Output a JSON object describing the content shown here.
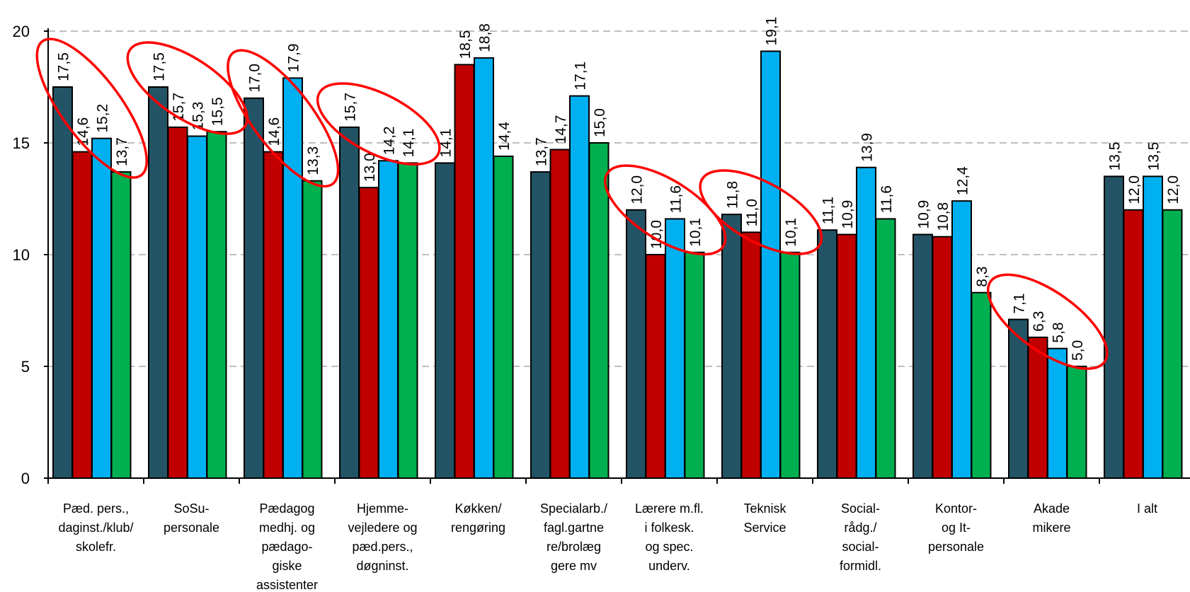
{
  "chart_data": {
    "type": "bar",
    "ylim": [
      0,
      20
    ],
    "yticks": [
      0,
      5,
      10,
      15,
      20
    ],
    "grid": true,
    "title": "",
    "xlabel": "",
    "ylabel": "",
    "categories": [
      [
        "Pæd. pers.,",
        "daginst./klub/",
        "skolefr."
      ],
      [
        "SoSu-",
        "personale"
      ],
      [
        "Pædagog",
        "medhj. og",
        "pædago-",
        "giske",
        "assistenter"
      ],
      [
        "Hjemme-",
        "vejledere og",
        "pæd.pers.,",
        "døgninst."
      ],
      [
        "Køkken/",
        "rengøring"
      ],
      [
        "Specialarb./",
        "fagl.gartne",
        "re/brolæg",
        "gere mv"
      ],
      [
        "Lærere m.fl.",
        "i folkesk.",
        "og spec.",
        "underv."
      ],
      [
        "Teknisk",
        "Service"
      ],
      [
        "Social-",
        "rådg./",
        "social-",
        "formidl."
      ],
      [
        "Kontor-",
        "og It-",
        "personale"
      ],
      [
        "Akade",
        "mikere"
      ],
      [
        "I alt"
      ]
    ],
    "series": [
      {
        "color": "#235465",
        "values": [
          17.5,
          17.5,
          17.0,
          15.7,
          14.1,
          13.7,
          12.0,
          11.8,
          11.1,
          10.9,
          7.1,
          13.5
        ]
      },
      {
        "color": "#c00000",
        "values": [
          14.6,
          15.7,
          14.6,
          13.0,
          18.5,
          14.7,
          10.0,
          11.0,
          10.9,
          10.8,
          6.3,
          12.0
        ]
      },
      {
        "color": "#00b0f0",
        "values": [
          15.2,
          15.3,
          17.9,
          14.2,
          18.8,
          17.1,
          11.6,
          19.1,
          13.9,
          12.4,
          5.8,
          13.5
        ]
      },
      {
        "color": "#00b050",
        "values": [
          13.7,
          15.5,
          13.3,
          14.1,
          14.4,
          15.0,
          10.1,
          10.1,
          11.6,
          8.3,
          5.0,
          12.0
        ]
      }
    ],
    "data_labels": [
      [
        "17,5",
        "17,5",
        "17,0",
        "15,7",
        "14,1",
        "13,7",
        "12,0",
        "11,8",
        "11,1",
        "10,9",
        "7,1",
        "13,5"
      ],
      [
        "14,6",
        "15,7",
        "14,6",
        "13,0",
        "18,5",
        "14,7",
        "10,0",
        "11,0",
        "10,9",
        "10,8",
        "6,3",
        "12,0"
      ],
      [
        "15,2",
        "15,3",
        "17,9",
        "14,2",
        "18,8",
        "17,1",
        "11,6",
        "19,1",
        "13,9",
        "12,4",
        "5,8",
        "13,5"
      ],
      [
        "13,7",
        "15,5",
        "13,3",
        "14,1",
        "14,4",
        "15,0",
        "10,1",
        "10,1",
        "11,6",
        "8,3",
        "5,0",
        "12,0"
      ]
    ],
    "highlighted_categories": [
      0,
      1,
      2,
      3,
      6,
      7,
      10
    ],
    "highlight_color": "#ff0000"
  }
}
